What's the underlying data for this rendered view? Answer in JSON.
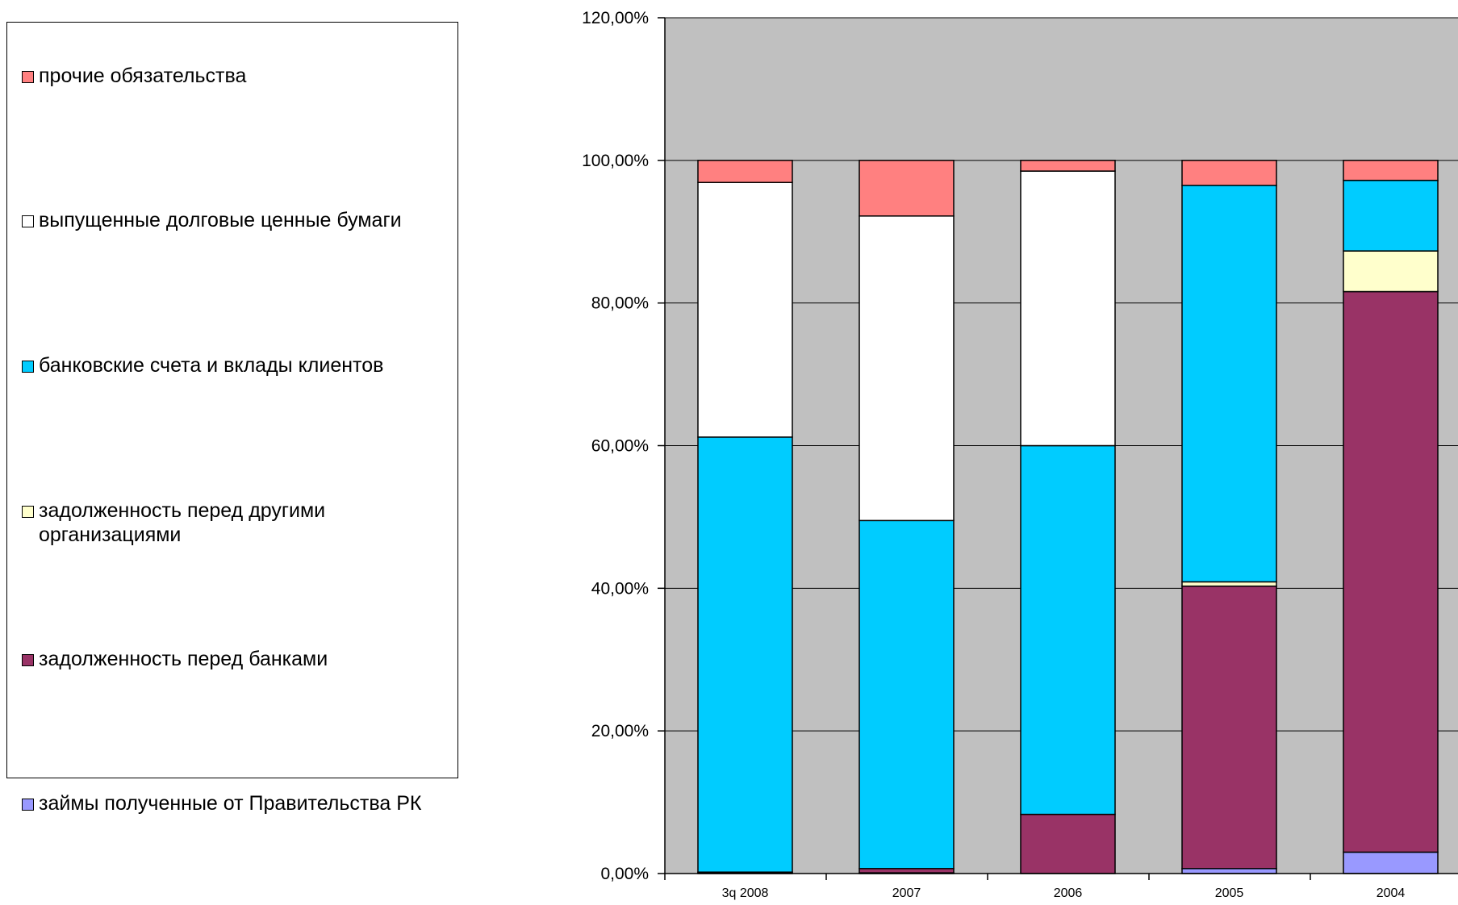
{
  "chart_data": {
    "type": "bar",
    "stacked": true,
    "categories": [
      "3q 2008",
      "2007",
      "2006",
      "2005",
      "2004"
    ],
    "ylim": [
      0,
      120
    ],
    "ytick_values": [
      0,
      20,
      40,
      60,
      80,
      100,
      120
    ],
    "ytick_labels": [
      "0,00%",
      "20,00%",
      "40,00%",
      "60,00%",
      "80,00%",
      "100,00%",
      "120,00%"
    ],
    "grid": true,
    "legend_position": "left",
    "plot_background": "#c0c0c0",
    "series": [
      {
        "name": "займы полученные от Правительства РК",
        "color": "#9999ff",
        "values": [
          0.1,
          0.1,
          0.0,
          0.7,
          3.0
        ]
      },
      {
        "name": "задолженность перед банками",
        "color": "#993366",
        "values": [
          0.1,
          0.6,
          8.3,
          39.6,
          78.6
        ]
      },
      {
        "name": "задолженность перед другими организациями",
        "color": "#ffffcc",
        "values": [
          0.0,
          0.0,
          0.0,
          0.6,
          5.7
        ]
      },
      {
        "name": "банковские счета и вклады клиентов",
        "color": "#00ccff",
        "values": [
          61.0,
          48.8,
          51.7,
          55.6,
          9.9
        ]
      },
      {
        "name": "выпущенные долговые ценные бумаги",
        "color": "#ffffff",
        "values": [
          35.7,
          42.7,
          38.5,
          0.0,
          0.0
        ]
      },
      {
        "name": "прочие обязательства",
        "color": "#ff8080",
        "values": [
          3.1,
          7.8,
          1.5,
          3.5,
          2.8
        ]
      }
    ]
  }
}
